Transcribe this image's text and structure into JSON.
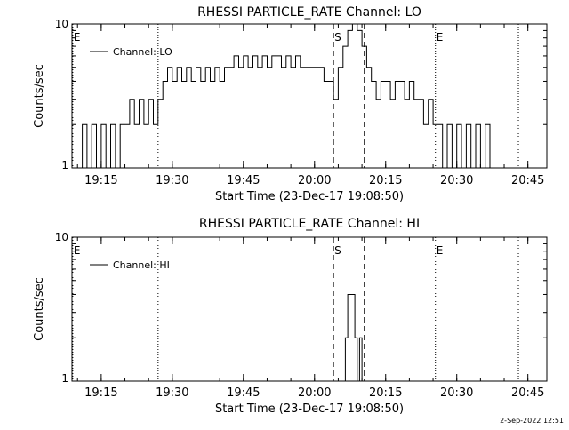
{
  "footer_timestamp": "2-Sep-2022 12:51",
  "chart_data": [
    {
      "type": "line",
      "title": "RHESSI PARTICLE_RATE Channel: LO",
      "xlabel": "Start Time (23-Dec-17 19:08:50)",
      "ylabel": "Counts/sec",
      "yscale": "log",
      "ylim": [
        1,
        10
      ],
      "yticks": [
        "1",
        "10"
      ],
      "xlim": [
        "19:08:50",
        "20:49:00"
      ],
      "xticks": [
        "19:15",
        "19:30",
        "19:45",
        "20:00",
        "20:15",
        "20:30",
        "20:45"
      ],
      "grid": false,
      "legend": "top-left",
      "series": [
        {
          "name": "Channel: LO",
          "points": [
            [
              "19:10:00",
              1
            ],
            [
              "19:11:00",
              2
            ],
            [
              "19:12:00",
              1
            ],
            [
              "19:13:00",
              2
            ],
            [
              "19:14:00",
              1
            ],
            [
              "19:15:00",
              2
            ],
            [
              "19:16:00",
              1
            ],
            [
              "19:17:00",
              2
            ],
            [
              "19:18:00",
              1
            ],
            [
              "19:19:00",
              2
            ],
            [
              "19:20:00",
              2
            ],
            [
              "19:21:00",
              3
            ],
            [
              "19:22:00",
              2
            ],
            [
              "19:23:00",
              3
            ],
            [
              "19:24:00",
              2
            ],
            [
              "19:25:00",
              3
            ],
            [
              "19:26:00",
              2
            ],
            [
              "19:27:00",
              3
            ],
            [
              "19:28:00",
              4
            ],
            [
              "19:29:00",
              5
            ],
            [
              "19:30:00",
              4
            ],
            [
              "19:31:00",
              5
            ],
            [
              "19:32:00",
              4
            ],
            [
              "19:33:00",
              5
            ],
            [
              "19:34:00",
              4
            ],
            [
              "19:35:00",
              5
            ],
            [
              "19:36:00",
              4
            ],
            [
              "19:37:00",
              5
            ],
            [
              "19:38:00",
              4
            ],
            [
              "19:39:00",
              5
            ],
            [
              "19:40:00",
              4
            ],
            [
              "19:41:00",
              5
            ],
            [
              "19:42:00",
              5
            ],
            [
              "19:43:00",
              6
            ],
            [
              "19:44:00",
              5
            ],
            [
              "19:45:00",
              6
            ],
            [
              "19:46:00",
              5
            ],
            [
              "19:47:00",
              6
            ],
            [
              "19:48:00",
              5
            ],
            [
              "19:49:00",
              6
            ],
            [
              "19:50:00",
              5
            ],
            [
              "19:51:00",
              6
            ],
            [
              "19:52:00",
              6
            ],
            [
              "19:53:00",
              5
            ],
            [
              "19:54:00",
              6
            ],
            [
              "19:55:00",
              5
            ],
            [
              "19:56:00",
              6
            ],
            [
              "19:57:00",
              5
            ],
            [
              "19:58:00",
              5
            ],
            [
              "19:59:00",
              5
            ],
            [
              "20:00:00",
              5
            ],
            [
              "20:01:00",
              5
            ],
            [
              "20:02:00",
              4
            ],
            [
              "20:03:00",
              4
            ],
            [
              "20:04:00",
              3
            ],
            [
              "20:05:00",
              5
            ],
            [
              "20:06:00",
              7
            ],
            [
              "20:07:00",
              9
            ],
            [
              "20:08:00",
              10
            ],
            [
              "20:09:00",
              9
            ],
            [
              "20:10:00",
              7
            ],
            [
              "20:11:00",
              5
            ],
            [
              "20:12:00",
              4
            ],
            [
              "20:13:00",
              3
            ],
            [
              "20:14:00",
              4
            ],
            [
              "20:15:00",
              4
            ],
            [
              "20:16:00",
              3
            ],
            [
              "20:17:00",
              4
            ],
            [
              "20:18:00",
              4
            ],
            [
              "20:19:00",
              3
            ],
            [
              "20:20:00",
              4
            ],
            [
              "20:21:00",
              3
            ],
            [
              "20:22:00",
              3
            ],
            [
              "20:23:00",
              2
            ],
            [
              "20:24:00",
              3
            ],
            [
              "20:25:00",
              2
            ],
            [
              "20:26:00",
              2
            ],
            [
              "20:27:00",
              1
            ],
            [
              "20:28:00",
              2
            ],
            [
              "20:29:00",
              1
            ],
            [
              "20:30:00",
              2
            ],
            [
              "20:31:00",
              1
            ],
            [
              "20:32:00",
              2
            ],
            [
              "20:33:00",
              1
            ],
            [
              "20:34:00",
              2
            ],
            [
              "20:35:00",
              1
            ],
            [
              "20:36:00",
              2
            ],
            [
              "20:37:00",
              1
            ]
          ]
        }
      ],
      "markers": [
        {
          "label": "E",
          "time": "19:09:00",
          "style": "dotted"
        },
        {
          "label": "",
          "time": "19:27:00",
          "style": "dotted"
        },
        {
          "label": "S",
          "time": "20:04:00",
          "style": "dashed"
        },
        {
          "label": "",
          "time": "20:10:30",
          "style": "dashed"
        },
        {
          "label": "E",
          "time": "20:25:30",
          "style": "dotted"
        },
        {
          "label": "",
          "time": "20:43:00",
          "style": "dotted"
        }
      ]
    },
    {
      "type": "line",
      "title": "RHESSI PARTICLE_RATE Channel: HI",
      "xlabel": "Start Time (23-Dec-17 19:08:50)",
      "ylabel": "Counts/sec",
      "yscale": "log",
      "ylim": [
        1,
        10
      ],
      "yticks": [
        "1",
        "10"
      ],
      "xlim": [
        "19:08:50",
        "20:49:00"
      ],
      "xticks": [
        "19:15",
        "19:30",
        "19:45",
        "20:00",
        "20:15",
        "20:30",
        "20:45"
      ],
      "grid": false,
      "legend": "top-left",
      "series": [
        {
          "name": "Channel: HI",
          "points": [
            [
              "20:06:00",
              1
            ],
            [
              "20:06:30",
              2
            ],
            [
              "20:07:00",
              4
            ],
            [
              "20:08:00",
              4
            ],
            [
              "20:08:30",
              2
            ],
            [
              "20:09:00",
              1
            ],
            [
              "20:09:30",
              2
            ],
            [
              "20:10:00",
              1
            ]
          ]
        }
      ],
      "markers": [
        {
          "label": "E",
          "time": "19:09:00",
          "style": "dotted"
        },
        {
          "label": "",
          "time": "19:27:00",
          "style": "dotted"
        },
        {
          "label": "S",
          "time": "20:04:00",
          "style": "dashed"
        },
        {
          "label": "",
          "time": "20:10:30",
          "style": "dashed"
        },
        {
          "label": "E",
          "time": "20:25:30",
          "style": "dotted"
        },
        {
          "label": "",
          "time": "20:43:00",
          "style": "dotted"
        }
      ]
    }
  ]
}
